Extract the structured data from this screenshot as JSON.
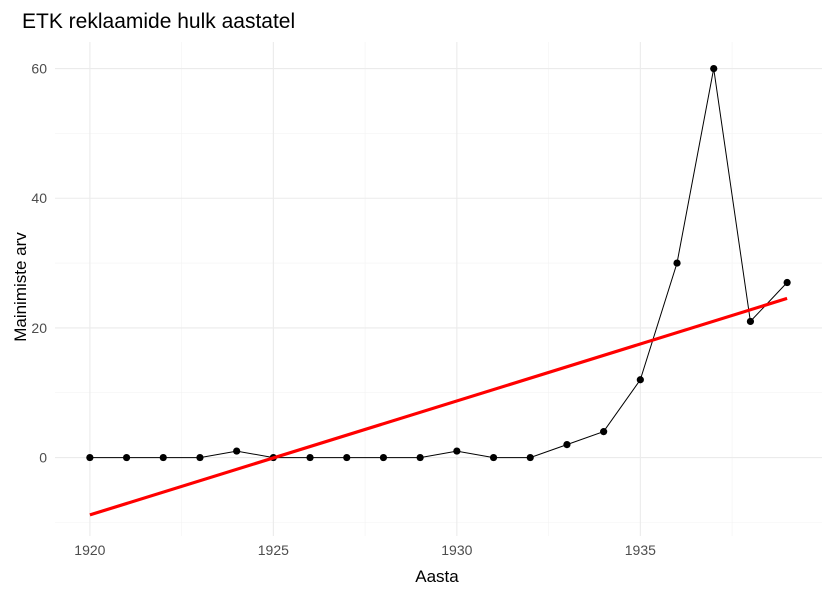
{
  "chart_data": {
    "type": "line",
    "title": "ETK reklaamide hulk aastatel",
    "xlabel": "Aasta",
    "ylabel": "Mainimiste arv",
    "xlim": [
      1919.05,
      1939.95
    ],
    "ylim": [
      -12.1,
      64.1
    ],
    "x_ticks": [
      1920,
      1925,
      1930,
      1935
    ],
    "y_ticks": [
      0,
      20,
      40,
      60
    ],
    "grid": true,
    "legend": "none",
    "series": [
      {
        "kind": "line+points",
        "color": "#000000",
        "x": [
          1920,
          1921,
          1922,
          1923,
          1924,
          1925,
          1926,
          1927,
          1928,
          1929,
          1930,
          1931,
          1932,
          1933,
          1934,
          1935,
          1936,
          1937,
          1938,
          1939
        ],
        "values": [
          0,
          0,
          0,
          0,
          1,
          0,
          0,
          0,
          0,
          0,
          1,
          0,
          0,
          2,
          4,
          12,
          30,
          60,
          21,
          27
        ]
      },
      {
        "kind": "trend",
        "color": "#ff0000",
        "x": [
          1920,
          1939
        ],
        "values": [
          -8.85,
          24.55
        ]
      }
    ]
  }
}
